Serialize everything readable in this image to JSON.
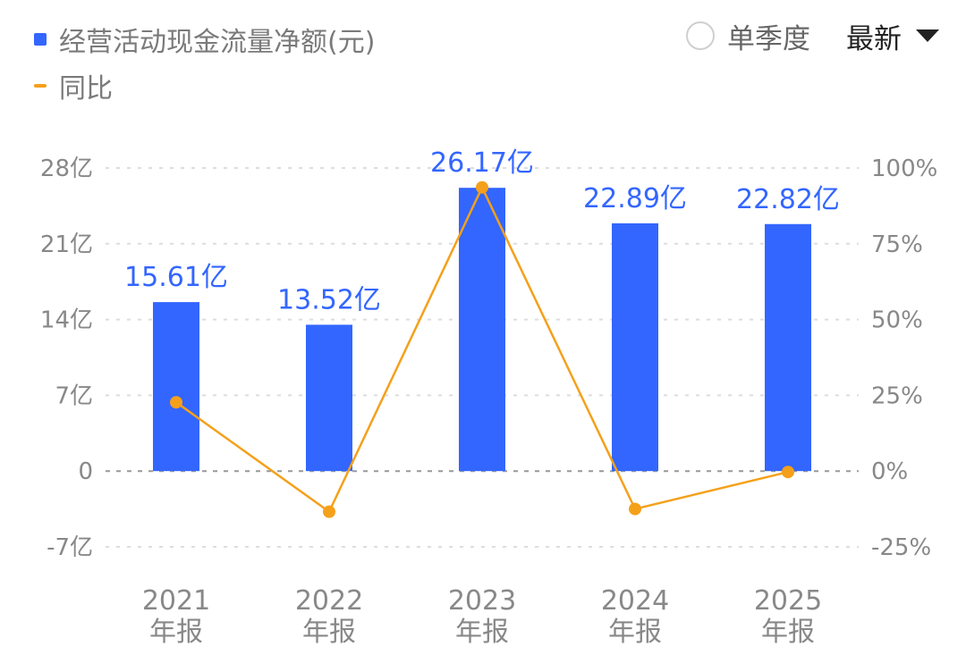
{
  "legend": {
    "bar_label": "经营活动现金流量净额(元)",
    "line_label": "同比"
  },
  "controls": {
    "radio_label": "单季度",
    "select_label": "最新"
  },
  "colors": {
    "bar": "#3366ff",
    "line": "#f5a01a",
    "grid": "#dddddd",
    "zero": "#999999"
  },
  "chart_data": {
    "type": "bar",
    "categories": [
      [
        "2021",
        "年报"
      ],
      [
        "2022",
        "年报"
      ],
      [
        "2023",
        "年报"
      ],
      [
        "2024",
        "年报"
      ],
      [
        "2025",
        "年报"
      ]
    ],
    "series": [
      {
        "name": "经营活动现金流量净额(元)",
        "type": "bar",
        "axis": "left",
        "values": [
          15.61,
          13.52,
          26.17,
          22.89,
          22.82
        ],
        "labels": [
          "15.61亿",
          "13.52亿",
          "26.17亿",
          "22.89亿",
          "22.82亿"
        ]
      },
      {
        "name": "同比",
        "type": "line",
        "axis": "right",
        "values": [
          22.7,
          -13.4,
          93.6,
          -12.5,
          -0.3
        ]
      }
    ],
    "y_left": {
      "range": [
        -7,
        28
      ],
      "ticks": [
        28,
        21,
        14,
        7,
        0,
        -7
      ],
      "tick_labels": [
        "28亿",
        "21亿",
        "14亿",
        "7亿",
        "0",
        "-7亿"
      ]
    },
    "y_right": {
      "range": [
        -25,
        100
      ],
      "ticks": [
        100,
        75,
        50,
        25,
        0,
        -25
      ],
      "tick_labels": [
        "100%",
        "75%",
        "50%",
        "25%",
        "0%",
        "-25%"
      ]
    },
    "grid": true,
    "legend_position": "top-left"
  }
}
